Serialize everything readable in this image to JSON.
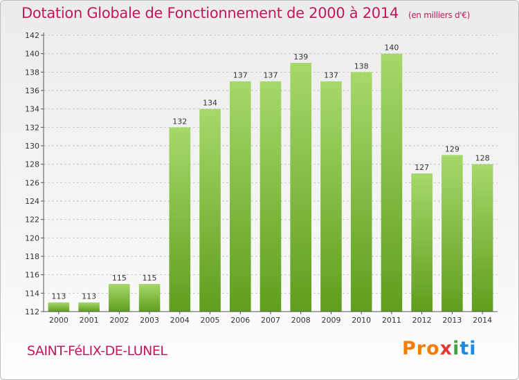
{
  "chart_data": {
    "type": "bar",
    "title": "Dotation Globale de Fonctionnement de 2000 à 2014",
    "unit_label": "(en milliers d'€)",
    "categories": [
      "2000",
      "2001",
      "2002",
      "2003",
      "2004",
      "2005",
      "2006",
      "2007",
      "2008",
      "2009",
      "2010",
      "2011",
      "2012",
      "2013",
      "2014"
    ],
    "values": [
      113,
      113,
      115,
      115,
      132,
      134,
      137,
      137,
      139,
      137,
      138,
      140,
      127,
      129,
      128
    ],
    "ylim": [
      112,
      142
    ],
    "yticks": [
      112,
      114,
      116,
      118,
      120,
      122,
      124,
      126,
      128,
      130,
      132,
      134,
      136,
      138,
      140,
      142
    ],
    "grid": true,
    "bar_color": "#7cc234",
    "bar_color_light": "#a6d86a"
  },
  "footer": {
    "city": "SAINT-FéLIX-DE-LUNEL",
    "logo": [
      "Pro",
      "x",
      "i",
      "ti"
    ]
  }
}
